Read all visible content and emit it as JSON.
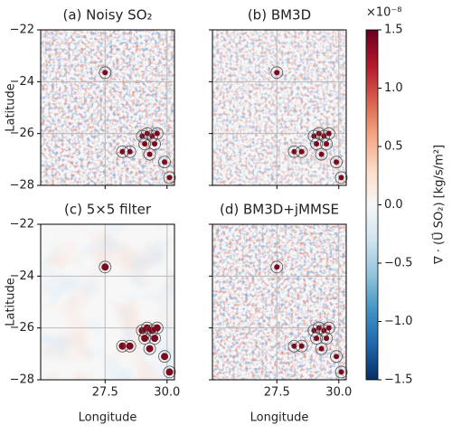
{
  "chart_data": {
    "type": "heatmap",
    "panels": [
      {
        "title": "(a) Noisy SO₂"
      },
      {
        "title": "(b) BM3D"
      },
      {
        "title": "(c) 5×5 filter"
      },
      {
        "title": "(d) BM3D+jMMSE"
      }
    ],
    "xlabel": "Longitude",
    "ylabel": "Latitude",
    "xlim": [
      24.9,
      30.3
    ],
    "ylim": [
      -28,
      -22
    ],
    "xticks": [
      27.5,
      {
        "value": 30,
        "label": "30.0"
      }
    ],
    "yticks": [
      {
        "value": -22,
        "label": "−22"
      },
      {
        "value": -24,
        "label": "−24"
      },
      {
        "value": -26,
        "label": "−26"
      },
      {
        "value": -28,
        "label": "−28"
      }
    ],
    "grid": true,
    "sources": {
      "x": [
        27.5,
        29.0,
        29.2,
        29.4,
        29.6,
        29.1,
        29.5,
        28.2,
        28.5,
        29.9,
        30.1,
        29.3
      ],
      "y": [
        -23.65,
        -26.1,
        -26.0,
        -26.1,
        -26.0,
        -26.4,
        -26.4,
        -26.7,
        -26.7,
        -27.1,
        -27.7,
        -26.8
      ]
    },
    "colorbar": {
      "label": "∇ · (U⃗ SO₂) [kg/s/m²]",
      "multiplier": "×10⁻⁸",
      "lim": [
        -1.5,
        1.5
      ],
      "ticks": [
        {
          "value": -1.5,
          "label": "−1.5"
        },
        {
          "value": -1.0,
          "label": "−1.0"
        },
        {
          "value": -0.5,
          "label": "−0.5"
        },
        {
          "value": 0,
          "label": "0.0"
        },
        {
          "value": 0.5,
          "label": "0.5"
        },
        {
          "value": 1.0,
          "label": "1.0"
        },
        {
          "value": 1.5,
          "label": "1.5"
        }
      ],
      "colors": [
        "#053061",
        "#2166ac",
        "#4393c3",
        "#92c5de",
        "#d1e5f0",
        "#f7f7f7",
        "#fddbc7",
        "#f4a582",
        "#d6604d",
        "#b2182b",
        "#67001f"
      ]
    }
  }
}
